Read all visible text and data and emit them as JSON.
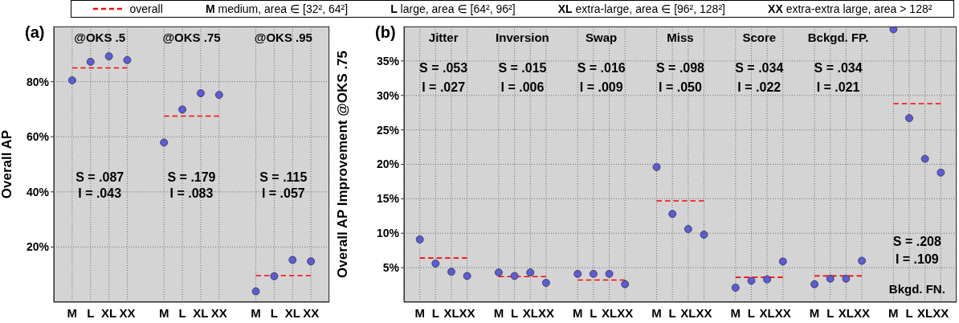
{
  "chart_data": [
    {
      "type": "scatter",
      "title": "(a)",
      "ylabel": "Overall AP",
      "categories": [
        "M",
        "L",
        "XL",
        "XX",
        null,
        "M",
        "L",
        "XL",
        "XX",
        null,
        "M",
        "L",
        "XL",
        "XX"
      ],
      "series": [
        {
          "color": "#5b5bdb",
          "marker": "circle",
          "values": [
            80.5,
            87.2,
            89.2,
            87.8,
            null,
            57.9,
            69.9,
            75.8,
            75.2,
            null,
            3.9,
            9.4,
            15.3,
            14.8
          ]
        },
        {
          "name": "overall",
          "type": "line",
          "line_style": "dashed",
          "color": "#ff0000",
          "values": [
            85.0,
            85.0,
            85.0,
            85.0,
            null,
            67.5,
            67.5,
            67.5,
            67.5,
            null,
            9.6,
            9.6,
            9.6,
            9.6
          ]
        }
      ],
      "ylim": [
        0,
        100
      ],
      "yticks": [
        {
          "value": 20,
          "label": "20%"
        },
        {
          "value": 40,
          "label": "40%"
        },
        {
          "value": 60,
          "label": "60%"
        },
        {
          "value": 80,
          "label": "80%"
        }
      ],
      "grid": true,
      "legend": "top",
      "annotations": [
        "@OKS .5",
        "S = .087",
        "I = .043",
        "@OKS .75",
        "S = .179",
        "I = .083",
        "@OKS .95",
        "S = .115",
        "I = .057",
        "M medium, area ∈ [32², 64²]",
        "L large, area ∈ [64², 96²]",
        "XL extra-large, area ∈ [96², 128²]",
        "XX extra-extra large, area > 128²"
      ]
    },
    {
      "type": "scatter",
      "title": "(b)",
      "ylabel": "Overall AP Improvement @OKS .75",
      "categories": [
        "M",
        "L",
        "XL",
        "XX",
        null,
        "M",
        "L",
        "XL",
        "XX",
        null,
        "M",
        "L",
        "XL",
        "XX",
        null,
        "M",
        "L",
        "XL",
        "XX",
        null,
        "M",
        "L",
        "XL",
        "XX",
        null,
        "M",
        "L",
        "XL",
        "XX",
        null,
        "M",
        "L",
        "XL",
        "XX"
      ],
      "series": [
        {
          "color": "#5b5bdb",
          "marker": "circle",
          "values": [
            9.1,
            5.6,
            4.4,
            3.8,
            null,
            4.3,
            3.8,
            4.3,
            2.8,
            null,
            4.1,
            4.1,
            4.1,
            2.6,
            null,
            19.6,
            12.8,
            10.6,
            9.8,
            null,
            2.1,
            3.1,
            3.3,
            5.9,
            null,
            2.6,
            3.4,
            3.4,
            6.0,
            null,
            39.6,
            26.7,
            20.8,
            18.8
          ]
        },
        {
          "type": "line",
          "line_style": "dashed",
          "color": "#ff0000",
          "values": [
            6.4,
            6.4,
            6.4,
            6.4,
            null,
            3.7,
            3.7,
            3.7,
            3.7,
            null,
            3.2,
            3.2,
            3.2,
            3.2,
            null,
            14.7,
            14.7,
            14.7,
            14.7,
            null,
            3.6,
            3.6,
            3.6,
            3.6,
            null,
            3.8,
            3.8,
            3.8,
            3.8,
            null,
            28.8,
            28.8,
            28.8,
            28.8
          ]
        }
      ],
      "ylim": [
        0,
        40
      ],
      "yticks": [
        {
          "value": 5,
          "label": "5%"
        },
        {
          "value": 10,
          "label": "10%"
        },
        {
          "value": 15,
          "label": "15%"
        },
        {
          "value": 20,
          "label": "20%"
        },
        {
          "value": 25,
          "label": "25%"
        },
        {
          "value": 30,
          "label": "30%"
        },
        {
          "value": 35,
          "label": "35%"
        }
      ],
      "grid": true,
      "annotations": [
        "Jitter",
        "S = .053",
        "I = .027",
        "Inversion",
        "S = .015",
        "I = .006",
        "Swap",
        "S = .016",
        "I = .009",
        "Miss",
        "S = .098",
        "I = .050",
        "Score",
        "S = .034",
        "I = .022",
        "Bckgd. FP.",
        "S = .034",
        "I = .021",
        "Bkgd. FN.",
        "S = .208",
        "I = .109"
      ]
    }
  ]
}
